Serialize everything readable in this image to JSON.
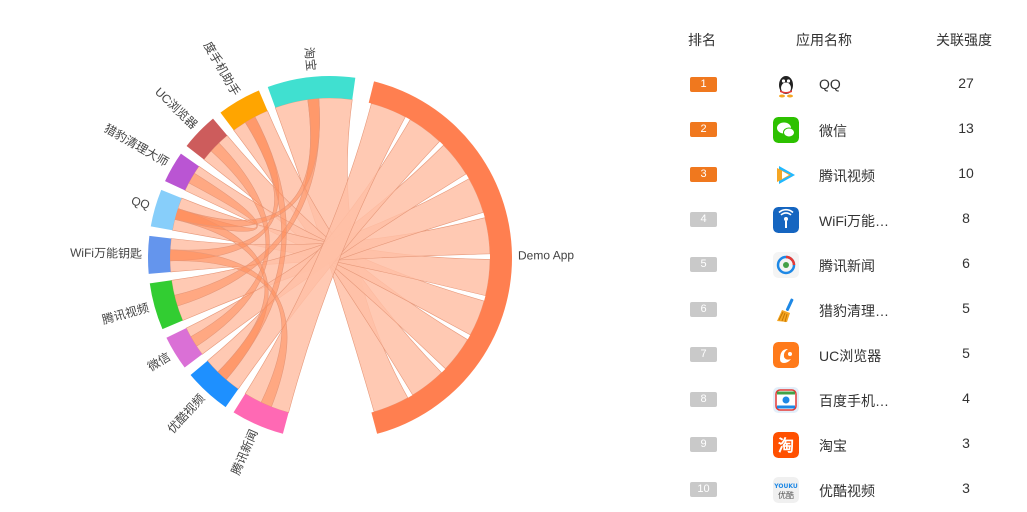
{
  "chart_data": {
    "type": "chord",
    "center_node": "Demo App",
    "nodes": [
      {
        "name": "Demo App",
        "color": "#ff7f50"
      },
      {
        "name": "淘宝",
        "color": "#40e0d0"
      },
      {
        "name": "度手机助手",
        "color": "#ffa500"
      },
      {
        "name": "UC浏览器",
        "color": "#cd5c5c"
      },
      {
        "name": "猎豹清理大师",
        "color": "#ba55d3"
      },
      {
        "name": "QQ",
        "color": "#87cefa"
      },
      {
        "name": "WiFi万能钥匙",
        "color": "#6495ed"
      },
      {
        "name": "腾讯视频",
        "color": "#32cd32"
      },
      {
        "name": "微信",
        "color": "#da70d6"
      },
      {
        "name": "优酷视频",
        "color": "#1e90ff"
      },
      {
        "name": "腾讯新闻",
        "color": "#ff69b4"
      }
    ]
  },
  "ranking": {
    "headers": {
      "rank": "排名",
      "name": "应用名称",
      "score": "关联强度"
    },
    "rows": [
      {
        "rank": "1",
        "name": "QQ",
        "score": "27",
        "icon": "qq-icon",
        "top": true
      },
      {
        "rank": "2",
        "name": "微信",
        "score": "13",
        "icon": "wechat-icon",
        "top": true
      },
      {
        "rank": "3",
        "name": "腾讯视频",
        "score": "10",
        "icon": "tencent-video-icon",
        "top": true
      },
      {
        "rank": "4",
        "name": "WiFi万能…",
        "score": "8",
        "icon": "wifi-key-icon",
        "top": false
      },
      {
        "rank": "5",
        "name": "腾讯新闻",
        "score": "6",
        "icon": "tencent-news-icon",
        "top": false
      },
      {
        "rank": "6",
        "name": "猎豹清理…",
        "score": "5",
        "icon": "cleaner-broom-icon",
        "top": false
      },
      {
        "rank": "7",
        "name": "UC浏览器",
        "score": "5",
        "icon": "uc-browser-icon",
        "top": false
      },
      {
        "rank": "8",
        "name": "百度手机…",
        "score": "4",
        "icon": "baidu-assistant-icon",
        "top": false
      },
      {
        "rank": "9",
        "name": "淘宝",
        "score": "3",
        "icon": "taobao-icon",
        "top": false
      },
      {
        "rank": "10",
        "name": "优酷视频",
        "score": "3",
        "icon": "youku-icon",
        "top": false
      }
    ]
  }
}
